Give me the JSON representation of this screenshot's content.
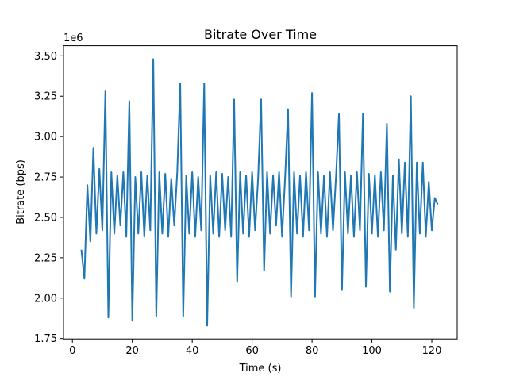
{
  "chart_data": {
    "type": "line",
    "title": "Bitrate Over Time",
    "x_label": "Time (s)",
    "y_label": "Bitrate (bps)",
    "y_offset_label": "1e6",
    "color": "#1f77b4",
    "x": [
      3,
      4,
      5,
      6,
      7,
      8,
      9,
      10,
      11,
      12,
      13,
      14,
      15,
      16,
      17,
      18,
      19,
      20,
      21,
      22,
      23,
      24,
      25,
      26,
      27,
      28,
      29,
      30,
      31,
      32,
      33,
      34,
      35,
      36,
      37,
      38,
      39,
      40,
      41,
      42,
      43,
      44,
      45,
      46,
      47,
      48,
      49,
      50,
      51,
      52,
      53,
      54,
      55,
      56,
      57,
      58,
      59,
      60,
      61,
      62,
      63,
      64,
      65,
      66,
      67,
      68,
      69,
      70,
      71,
      72,
      73,
      74,
      75,
      76,
      77,
      78,
      79,
      80,
      81,
      82,
      83,
      84,
      85,
      86,
      87,
      88,
      89,
      90,
      91,
      92,
      93,
      94,
      95,
      96,
      97,
      98,
      99,
      100,
      101,
      102,
      103,
      104,
      105,
      106,
      107,
      108,
      109,
      110,
      111,
      112,
      113,
      114,
      115,
      116,
      117,
      118,
      119,
      120,
      121,
      122
    ],
    "values": [
      2.3,
      2.12,
      2.7,
      2.35,
      2.93,
      2.4,
      2.8,
      2.42,
      3.28,
      1.88,
      2.78,
      2.4,
      2.76,
      2.45,
      2.78,
      2.38,
      3.22,
      1.86,
      2.75,
      2.4,
      2.78,
      2.38,
      2.76,
      2.42,
      3.48,
      1.89,
      2.78,
      2.4,
      2.77,
      2.38,
      2.74,
      2.45,
      2.78,
      3.33,
      1.89,
      2.76,
      2.4,
      2.78,
      2.38,
      2.75,
      2.42,
      3.33,
      1.83,
      2.76,
      2.4,
      2.78,
      2.38,
      2.77,
      2.42,
      2.75,
      2.38,
      3.23,
      2.1,
      2.78,
      2.4,
      2.76,
      2.38,
      2.78,
      2.42,
      2.74,
      3.23,
      2.17,
      2.78,
      2.4,
      2.76,
      2.45,
      2.78,
      2.38,
      2.74,
      3.17,
      2.01,
      2.78,
      2.4,
      2.76,
      2.38,
      2.78,
      2.42,
      3.27,
      2.01,
      2.78,
      2.4,
      2.76,
      2.38,
      2.78,
      2.42,
      2.75,
      3.14,
      2.05,
      2.78,
      2.4,
      2.76,
      2.38,
      2.78,
      2.42,
      3.14,
      2.07,
      2.77,
      2.4,
      2.76,
      2.38,
      2.78,
      2.42,
      3.08,
      2.04,
      2.76,
      2.3,
      2.86,
      2.4,
      2.84,
      2.38,
      3.25,
      1.94,
      2.84,
      2.4,
      2.84,
      2.38,
      2.72,
      2.42,
      2.62,
      2.58
    ],
    "xlim": [
      -2.975,
      128.475
    ],
    "ylim": [
      1.7475,
      3.5625
    ],
    "xticks": [
      0,
      20,
      40,
      60,
      80,
      100,
      120
    ],
    "yticks": [
      {
        "value": 1.75,
        "label": "1.75"
      },
      {
        "value": 2,
        "label": "2.00"
      },
      {
        "value": 2.25,
        "label": "2.25"
      },
      {
        "value": 2.5,
        "label": "2.50"
      },
      {
        "value": 2.75,
        "label": "2.75"
      },
      {
        "value": 3,
        "label": "3.00"
      },
      {
        "value": 3.25,
        "label": "3.25"
      },
      {
        "value": 3.5,
        "label": "3.50"
      }
    ]
  }
}
